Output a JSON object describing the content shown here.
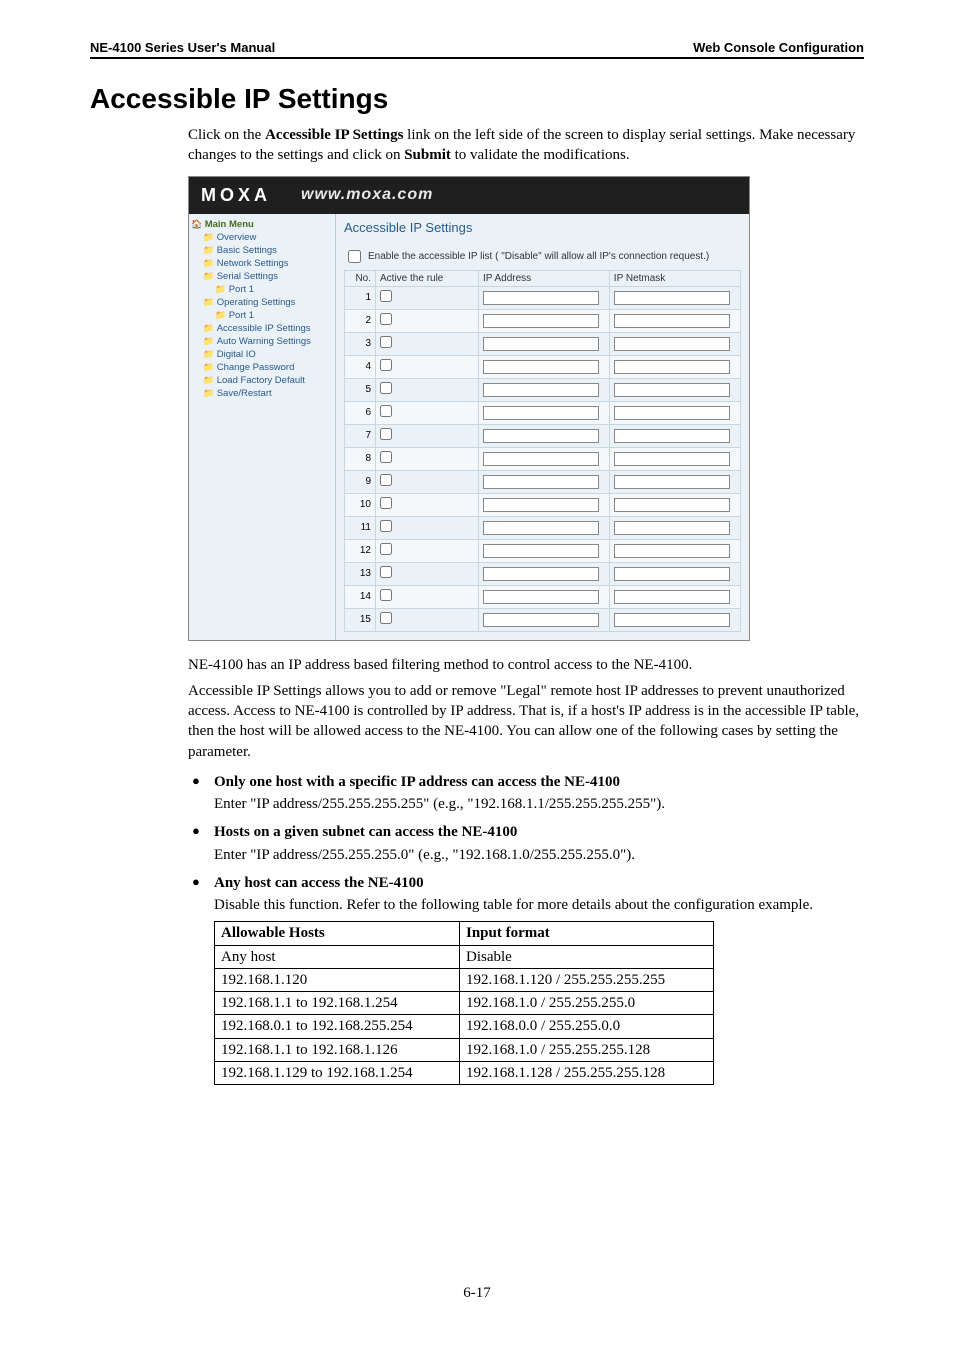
{
  "header": {
    "left": "NE-4100 Series User's Manual",
    "right": "Web Console Configuration"
  },
  "title": "Accessible IP Settings",
  "intro": {
    "line1_a": "Click on the ",
    "line1_bold": "Accessible IP Settings",
    "line1_b": " link on the left side of the screen to display serial settings. Make necessary changes to the settings and click on ",
    "line1_bold2": "Submit",
    "line1_c": " to validate the modifications."
  },
  "screenshot": {
    "logo": "MOXA",
    "url": "www.moxa.com",
    "heading": "Accessible IP Settings",
    "enable_label": "Enable the accessible IP list ( \"Disable\" will allow all IP's connection request.)",
    "cols": {
      "no": "No.",
      "active": "Active the rule",
      "ip": "IP Address",
      "netmask": "IP Netmask"
    },
    "sidebar": {
      "main": "Main Menu",
      "overview": "Overview",
      "basic": "Basic Settings",
      "network": "Network Settings",
      "serial": "Serial Settings",
      "serial_p1": "Port 1",
      "operating": "Operating Settings",
      "op_p1": "Port 1",
      "accessible": "Accessible IP Settings",
      "autowarn": "Auto Warning Settings",
      "digital": "Digital IO",
      "changepw": "Change Password",
      "factory": "Load Factory Default",
      "save": "Save/Restart"
    },
    "row_count": 15
  },
  "para1": "NE-4100 has an IP address based filtering method to control access to the NE-4100.",
  "para2": "Accessible IP Settings allows you to add or remove \"Legal\" remote host IP addresses to prevent unauthorized access. Access to NE-4100 is controlled by IP address. That is, if a host's IP address is in the accessible IP table, then the host will be allowed access to the NE-4100. You can allow one of the following cases by setting the parameter.",
  "bullets": {
    "b1_lead": "Only one host with a specific IP address can access the NE-4100",
    "b1_sub": "Enter \"IP address/255.255.255.255\" (e.g., \"192.168.1.1/255.255.255.255\").",
    "b2_lead": "Hosts on a given subnet can access the NE-4100",
    "b2_sub": "Enter \"IP address/255.255.255.0\" (e.g., \"192.168.1.0/255.255.255.0\").",
    "b3_lead": "Any host can access the NE-4100",
    "b3_sub": "Disable this function. Refer to the following table for more details about the configuration example."
  },
  "hosts_table": {
    "h1": "Allowable Hosts",
    "h2": "Input format",
    "rows": [
      [
        "Any host",
        "Disable"
      ],
      [
        "192.168.1.120",
        "192.168.1.120 / 255.255.255.255"
      ],
      [
        "192.168.1.1 to 192.168.1.254",
        "192.168.1.0 / 255.255.255.0"
      ],
      [
        "192.168.0.1 to 192.168.255.254",
        "192.168.0.0 / 255.255.0.0"
      ],
      [
        "192.168.1.1 to 192.168.1.126",
        "192.168.1.0 / 255.255.255.128"
      ],
      [
        "192.168.1.129 to 192.168.1.254",
        "192.168.1.128 / 255.255.255.128"
      ]
    ]
  },
  "page_number": "6-17"
}
